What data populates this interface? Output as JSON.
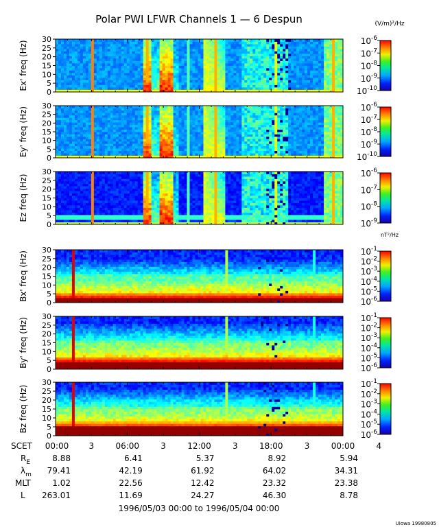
{
  "title": "Polar PWI LFWR Channels 1 — 6 Despun",
  "units_e": "(V/m)²/Hz",
  "units_b": "nT²/Hz",
  "footer_range": "1996/05/03 00:00 to 1996/05/04 00:00",
  "credit": "UIowa 19980805",
  "chart_data": {
    "type": "heatmap",
    "panels": [
      {
        "ylabel": "Ex' freq (Hz)",
        "ylim": [
          0,
          30
        ],
        "yticks": [
          0,
          5,
          10,
          15,
          20,
          25,
          30
        ],
        "colorbar": {
          "exponents": [
            -6,
            -7,
            -8,
            -9,
            -10
          ],
          "range": [
            -10,
            -6
          ]
        }
      },
      {
        "ylabel": "Ey' freq (Hz)",
        "ylim": [
          0,
          30
        ],
        "yticks": [
          0,
          5,
          10,
          15,
          20,
          25,
          30
        ],
        "colorbar": {
          "exponents": [
            -6,
            -7,
            -8,
            -9,
            -10
          ],
          "range": [
            -10,
            -6
          ]
        }
      },
      {
        "ylabel": "Ez freq (Hz)",
        "ylim": [
          0,
          30
        ],
        "yticks": [
          0,
          5,
          10,
          15,
          20,
          25,
          30
        ],
        "colorbar": {
          "exponents": [
            -6,
            -7,
            -8,
            -9
          ],
          "range": [
            -9,
            -6
          ]
        }
      },
      {
        "ylabel": "Bx' freq (Hz)",
        "ylim": [
          0,
          30
        ],
        "yticks": [
          0,
          5,
          10,
          15,
          20,
          25,
          30
        ],
        "colorbar": {
          "exponents": [
            -1,
            -2,
            -3,
            -4,
            -5,
            -6
          ],
          "range": [
            -6,
            -1
          ]
        }
      },
      {
        "ylabel": "By' freq (Hz)",
        "ylim": [
          0,
          30
        ],
        "yticks": [
          0,
          5,
          10,
          15,
          20,
          25,
          30
        ],
        "colorbar": {
          "exponents": [
            -1,
            -2,
            -3,
            -4,
            -5,
            -6
          ],
          "range": [
            -6,
            -1
          ]
        }
      },
      {
        "ylabel": "Bz freq (Hz)",
        "ylim": [
          0,
          30
        ],
        "yticks": [
          0,
          5,
          10,
          15,
          20,
          25,
          30
        ],
        "colorbar": {
          "exponents": [
            -1,
            -2,
            -3,
            -4,
            -5,
            -6
          ],
          "range": [
            -6,
            -1
          ]
        }
      }
    ],
    "x_ticks": {
      "row_labels": [
        "SCET",
        "R_E",
        "λ_m",
        "MLT",
        "L"
      ],
      "major": [
        {
          "h": 0,
          "scet": "00:00",
          "re": "8.88",
          "lm": "79.41",
          "mlt": "1.02",
          "l": "263.01"
        },
        {
          "h": 6,
          "scet": "06:00",
          "re": "6.41",
          "lm": "42.19",
          "mlt": "22.56",
          "l": "11.69"
        },
        {
          "h": 12,
          "scet": "12:00",
          "re": "5.37",
          "lm": "61.92",
          "mlt": "12.42",
          "l": "24.27"
        },
        {
          "h": 18,
          "scet": "18:00",
          "re": "8.92",
          "lm": "64.02",
          "mlt": "23.32",
          "l": "46.30"
        },
        {
          "h": 24,
          "scet": "00:00",
          "re": "5.94",
          "lm": "34.31",
          "mlt": "23.38",
          "l": "8.78"
        }
      ],
      "minor_labels": [
        {
          "h": 3,
          "label": "3"
        },
        {
          "h": 9,
          "label": "3"
        },
        {
          "h": 15,
          "label": "3"
        },
        {
          "h": 21,
          "label": "3"
        },
        {
          "h": 27,
          "label": "4"
        }
      ]
    }
  }
}
